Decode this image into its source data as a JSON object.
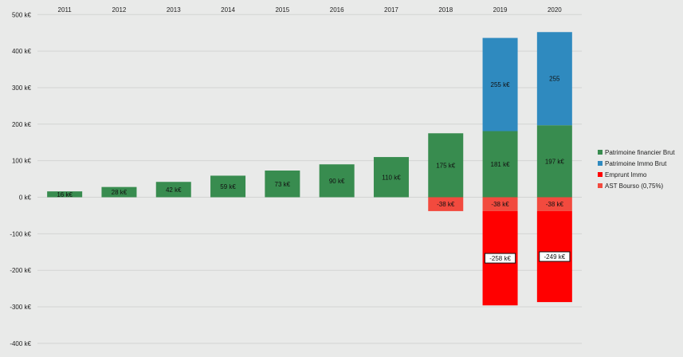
{
  "chart_data": {
    "type": "bar",
    "stacked": true,
    "title": "",
    "xlabel": "",
    "ylabel": "",
    "ylim": [
      -400,
      500
    ],
    "yticks": [
      500,
      400,
      300,
      200,
      100,
      0,
      -100,
      -200,
      -300,
      -400
    ],
    "ytick_labels": [
      "500 k€",
      "400 k€",
      "300 k€",
      "200 k€",
      "100 k€",
      "0 k€",
      "-100 k€",
      "-200 k€",
      "-300 k€",
      "-400 k€"
    ],
    "categories": [
      "2011",
      "2012",
      "2013",
      "2014",
      "2015",
      "2016",
      "2017",
      "2018",
      "2019",
      "2020"
    ],
    "x_axis_position": "top",
    "grid": true,
    "legend_position": "right",
    "series": [
      {
        "name": "Patrimoine financier Brut",
        "color": "#388c4f",
        "values": [
          16,
          28,
          42,
          59,
          73,
          90,
          110,
          175,
          181,
          197
        ],
        "labels": [
          "16 k€",
          "28 k€",
          "42 k€",
          "59 k€",
          "73 k€",
          "90 k€",
          "110 k€",
          "175 k€",
          "181 k€",
          "197 k€"
        ]
      },
      {
        "name": "Patrimoine Immo Brut",
        "color": "#2f8abf",
        "values": [
          0,
          0,
          0,
          0,
          0,
          0,
          0,
          0,
          255,
          255
        ],
        "labels": [
          "",
          "",
          "",
          "",
          "",
          "",
          "",
          "",
          "255 k€",
          "255"
        ]
      },
      {
        "name": "Emprunt Immo",
        "color": "#ff0000",
        "values": [
          0,
          0,
          0,
          0,
          0,
          0,
          0,
          0,
          -258,
          -249
        ],
        "labels": [
          "",
          "",
          "",
          "",
          "",
          "",
          "",
          "",
          "-258 k€",
          "-249 k€"
        ],
        "label_boxed": true
      },
      {
        "name": "AST Bourso (0,75%)",
        "color": "#f24a3e",
        "values": [
          0,
          0,
          0,
          0,
          0,
          0,
          0,
          -38,
          -38,
          -38
        ],
        "labels": [
          "",
          "",
          "",
          "",
          "",
          "",
          "",
          "-38 k€",
          "-38 k€",
          "-38 k€"
        ]
      }
    ]
  }
}
